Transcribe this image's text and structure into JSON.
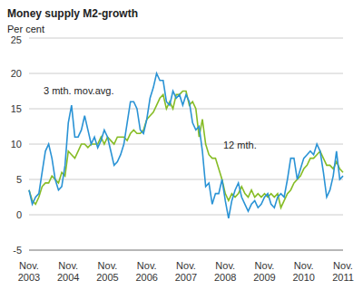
{
  "chart_data": {
    "type": "line",
    "title": "Money supply M2-growth",
    "subtitle": "Per cent",
    "categories": [
      "Nov. 2003",
      null,
      null,
      null,
      null,
      null,
      null,
      null,
      null,
      null,
      null,
      null,
      "Nov. 2004",
      null,
      null,
      null,
      null,
      null,
      null,
      null,
      null,
      null,
      null,
      null,
      "Nov. 2005",
      null,
      null,
      null,
      null,
      null,
      null,
      null,
      null,
      null,
      null,
      null,
      "Nov. 2006",
      null,
      null,
      null,
      null,
      null,
      null,
      null,
      null,
      null,
      null,
      null,
      "Nov. 2007",
      null,
      null,
      null,
      null,
      null,
      null,
      null,
      null,
      null,
      null,
      null,
      "Nov. 2008",
      null,
      null,
      null,
      null,
      null,
      null,
      null,
      null,
      null,
      null,
      null,
      "Nov. 2009",
      null,
      null,
      null,
      null,
      null,
      null,
      null,
      null,
      null,
      null,
      null,
      "Nov. 2010",
      null,
      null,
      null,
      null,
      null,
      null,
      null,
      null,
      null,
      null,
      null,
      "Nov. 2011"
    ],
    "series": [
      {
        "name": "12 mth.",
        "color": "#86bc25",
        "values": [
          3.5,
          2,
          1.5,
          2.5,
          4,
          4.5,
          4.5,
          5.5,
          5,
          4.5,
          6,
          5.5,
          9,
          8.5,
          8,
          9,
          10,
          10,
          9.5,
          10,
          10,
          10,
          11,
          10,
          11,
          10.5,
          10,
          11,
          11,
          11,
          10.5,
          11.5,
          12,
          11.5,
          11.5,
          12,
          13.5,
          14,
          14.5,
          15.5,
          16.5,
          17,
          15,
          16,
          15,
          17,
          17,
          17.5,
          17.5,
          15.5,
          16,
          15,
          11,
          13.5,
          10,
          8.5,
          8,
          8,
          6.5,
          5,
          3,
          2,
          3,
          2.5,
          3,
          4,
          3,
          2.5,
          3.5,
          2.5,
          3,
          2.5,
          3,
          2.5,
          3,
          2.5,
          3,
          1,
          2,
          3,
          3.5,
          4.5,
          5,
          5.5,
          6.5,
          7,
          8,
          8,
          8.5,
          9,
          8,
          7,
          7,
          6.5,
          7.5,
          6.5,
          6
        ]
      },
      {
        "name": "3 mth. mov.avg.",
        "color": "#2a93d5",
        "values": [
          3.5,
          1.5,
          2.5,
          3,
          6,
          9,
          10,
          8,
          5,
          3.5,
          4,
          7,
          13,
          15.5,
          11,
          11,
          12,
          14,
          12,
          10,
          11,
          9.5,
          10.5,
          12,
          11,
          9,
          7,
          7.5,
          8.5,
          10,
          13,
          16,
          16,
          15,
          12,
          11.5,
          13.5,
          16.5,
          18,
          20,
          19,
          19,
          16,
          15.5,
          17.5,
          16.5,
          17,
          15.5,
          17,
          16,
          13,
          12,
          12.5,
          9,
          4,
          4.5,
          1.5,
          3,
          3,
          5,
          2,
          -0.5,
          2,
          3.5,
          4.5,
          2.5,
          1.5,
          0.5,
          1.5,
          2,
          1,
          1.5,
          2.5,
          3,
          1.5,
          1,
          2.5,
          3,
          2.5,
          5,
          8,
          8,
          5,
          6.5,
          8,
          8.5,
          9,
          8.5,
          10,
          9,
          6,
          2.5,
          3.5,
          5.5,
          9,
          5,
          5.5
        ]
      }
    ],
    "ylim": [
      -5,
      25
    ],
    "yticks": [
      -5,
      0,
      5,
      10,
      15,
      20,
      25
    ],
    "grid": true
  }
}
